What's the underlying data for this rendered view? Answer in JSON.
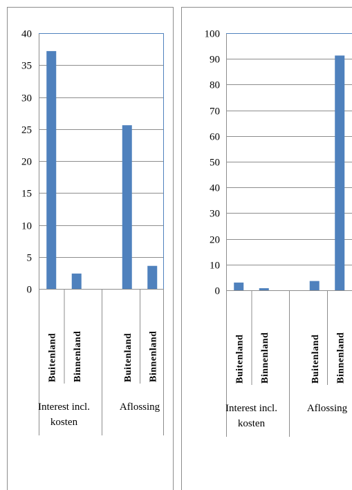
{
  "chart_data": [
    {
      "type": "bar",
      "ylim": [
        0,
        40
      ],
      "yticks": [
        0,
        5,
        10,
        15,
        20,
        25,
        30,
        35,
        40
      ],
      "grid": true,
      "groups": [
        {
          "label_lines": [
            "Interest incl.",
            "kosten"
          ],
          "categories": [
            "Buitenland",
            "Binnenland"
          ],
          "values": [
            37.2,
            2.4
          ]
        },
        {
          "label_lines": [
            "Aflossing"
          ],
          "categories": [
            "Buitenland",
            "Binnenland"
          ],
          "values": [
            25.6,
            3.6
          ]
        }
      ],
      "bar_color": "#4f81bd"
    },
    {
      "type": "bar",
      "ylim": [
        0,
        100
      ],
      "yticks": [
        0,
        10,
        20,
        30,
        40,
        50,
        60,
        70,
        80,
        90,
        100
      ],
      "grid": true,
      "groups": [
        {
          "label_lines": [
            "Interest incl.",
            "kosten"
          ],
          "categories": [
            "Buitenland",
            "Binnenland"
          ],
          "values": [
            3.0,
            0.8
          ]
        },
        {
          "label_lines": [
            "Aflossing"
          ],
          "categories": [
            "Buitenland",
            "Binnenland"
          ],
          "values": [
            3.6,
            91.3
          ]
        }
      ],
      "bar_color": "#4f81bd"
    }
  ]
}
